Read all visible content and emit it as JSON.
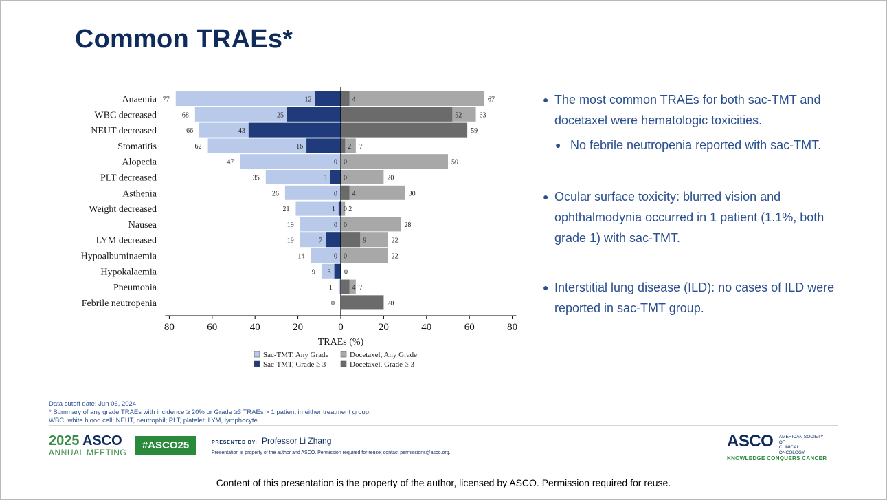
{
  "slide": {
    "title": "Common TRAEs*",
    "bullets": [
      "The most common TRAEs for both sac-TMT and docetaxel were hematologic toxicities.",
      "No febrile neutropenia reported with sac-TMT.",
      "Ocular surface toxicity: blurred vision and ophthalmodynia occurred in 1 patient (1.1%, both grade 1) with sac-TMT.",
      "Interstitial lung disease (ILD): no cases of ILD were reported in sac-TMT group."
    ],
    "footnotes": [
      "Data cutoff date: Jun 06, 2024.",
      "* Summary of any grade TRAEs with incidence ≥ 20% or Grade ≥3 TRAEs > 1 patient in either treatment group.",
      "WBC, white blood cell; NEUT, neutrophil; PLT, platelet; LYM, lymphocyte."
    ]
  },
  "footer": {
    "meeting_year": "2025",
    "meeting_org": "ASCO",
    "meeting_sub": "ANNUAL MEETING",
    "hashtag": "#ASCO25",
    "presented_by_label": "PRESENTED BY:",
    "presenter": "Professor Li Zhang",
    "property_note": "Presentation is property of the author and ASCO. Permission required for reuse; contact permissions@asco.org.",
    "logo_main": "ASCO",
    "logo_line1": "AMERICAN SOCIETY OF",
    "logo_line2": "CLINICAL ONCOLOGY",
    "logo_tagline": "KNOWLEDGE CONQUERS CANCER"
  },
  "caption": "Content of this presentation is the property of the author, licensed by ASCO. Permission required for reuse.",
  "chart_data": {
    "type": "bar",
    "orientation": "horizontal-butterfly",
    "categories": [
      "Anaemia",
      "WBC decreased",
      "NEUT decreased",
      "Stomatitis",
      "Alopecia",
      "PLT decreased",
      "Asthenia",
      "Weight decreased",
      "Nausea",
      "LYM decreased",
      "Hypoalbuminaemia",
      "Hypokalaemia",
      "Pneumonia",
      "Febrile neutropenia"
    ],
    "series": [
      {
        "name": "Sac-TMT, Any Grade",
        "side": "left",
        "color": "#b9c9ea",
        "values": [
          77,
          68,
          66,
          62,
          47,
          35,
          26,
          21,
          19,
          19,
          14,
          9,
          1,
          0
        ]
      },
      {
        "name": "Sac-TMT, Grade ≥ 3",
        "side": "left",
        "color": "#1f3b7c",
        "values": [
          12,
          25,
          43,
          16,
          0,
          5,
          0,
          1,
          0,
          7,
          0,
          3,
          null,
          null
        ]
      },
      {
        "name": "Docetaxel, Any Grade",
        "side": "right",
        "color": "#a8a8a8",
        "values": [
          67,
          63,
          59,
          7,
          50,
          20,
          30,
          2,
          28,
          22,
          22,
          0,
          7,
          20
        ]
      },
      {
        "name": "Docetaxel, Grade ≥ 3",
        "side": "right",
        "color": "#6b6b6b",
        "values": [
          4,
          52,
          59,
          2,
          0,
          0,
          4,
          0,
          0,
          9,
          0,
          null,
          4,
          20
        ]
      }
    ],
    "xlabel": "TRAEs (%)",
    "xticks": [
      "80",
      "60",
      "40",
      "20",
      "0",
      "20",
      "40",
      "60",
      "80"
    ],
    "xlim": [
      -80,
      80
    ],
    "legend": "bottom"
  },
  "colors": {
    "title": "#0e2b5c",
    "bullet_text": "#2a4f8f",
    "sac_any": "#b9c9ea",
    "sac_g3": "#1f3b7c",
    "doc_any": "#a8a8a8",
    "doc_g3": "#6b6b6b",
    "hashtag_bg": "#2a8a3c"
  }
}
